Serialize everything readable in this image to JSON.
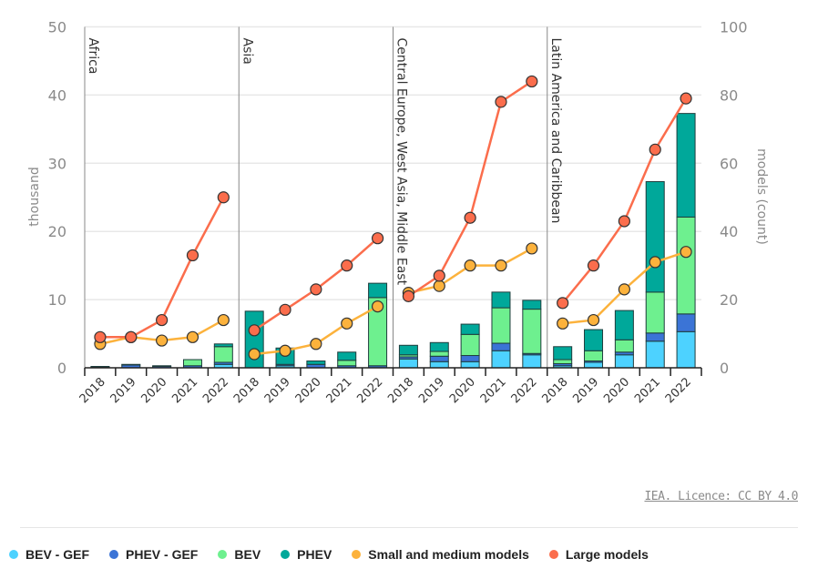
{
  "chart_data": {
    "type": "bar+line",
    "title": "",
    "ylabel_left": "thousand",
    "ylabel_right": "models (count)",
    "ylim_left": [
      0,
      50
    ],
    "ylim_right": [
      0,
      100
    ],
    "yticks_left": [
      "0",
      "10",
      "20",
      "30",
      "40",
      "50"
    ],
    "yticks_right": [
      "0",
      "20",
      "40",
      "60",
      "80",
      "100"
    ],
    "grid": true,
    "legend_position": "bottom",
    "categories": [
      "2018",
      "2019",
      "2020",
      "2021",
      "2022"
    ],
    "bar_series_names": [
      "BEV - GEF",
      "PHEV - GEF",
      "BEV",
      "PHEV"
    ],
    "line_series_names": [
      "Small and medium models",
      "Large models"
    ],
    "panels": [
      {
        "name": "Africa",
        "bars": {
          "BEV - GEF": [
            0,
            0,
            0,
            0,
            0.5
          ],
          "PHEV - GEF": [
            0.1,
            0.4,
            0.2,
            0.3,
            0.3
          ],
          "BEV": [
            0,
            0,
            0,
            0.9,
            2.3
          ],
          "PHEV": [
            0.1,
            0.1,
            0.1,
            0,
            0.4
          ]
        },
        "lines": {
          "Small and medium models": [
            7,
            9,
            8,
            9,
            14
          ],
          "Large models": [
            9,
            9,
            14,
            33,
            50
          ]
        }
      },
      {
        "name": "Asia",
        "bars": {
          "BEV - GEF": [
            0,
            0.3,
            0,
            0,
            0
          ],
          "PHEV - GEF": [
            0,
            0.2,
            0.5,
            0.3,
            0.3
          ],
          "BEV": [
            0,
            0,
            0,
            0.8,
            10
          ],
          "PHEV": [
            8.3,
            2.4,
            0.5,
            1.2,
            2.1
          ]
        },
        "lines": {
          "Small and medium models": [
            4,
            5,
            7,
            13,
            18
          ],
          "Large models": [
            11,
            17,
            23,
            30,
            38
          ]
        }
      },
      {
        "name": "Central Europe, West Asia, Middle East",
        "bars": {
          "BEV - GEF": [
            1.3,
            0.9,
            0.9,
            2.5,
            1.9
          ],
          "PHEV - GEF": [
            0.3,
            0.8,
            0.9,
            1.1,
            0.2
          ],
          "BEV": [
            0.3,
            0.7,
            3.1,
            5.2,
            6.5
          ],
          "PHEV": [
            1.4,
            1.3,
            1.5,
            2.3,
            1.3
          ]
        },
        "lines": {
          "Small and medium models": [
            22,
            24,
            30,
            30,
            35
          ],
          "Large models": [
            21,
            27,
            44,
            78,
            84
          ]
        }
      },
      {
        "name": "Latin America and Caribbean",
        "bars": {
          "BEV - GEF": [
            0.3,
            0.8,
            1.9,
            3.9,
            5.3
          ],
          "PHEV - GEF": [
            0.3,
            0.2,
            0.4,
            1.2,
            2.6
          ],
          "BEV": [
            0.6,
            1.5,
            1.8,
            6.0,
            14.2
          ],
          "PHEV": [
            1.9,
            3.1,
            4.3,
            16.2,
            15.2
          ]
        },
        "lines": {
          "Small and medium models": [
            13,
            14,
            23,
            31,
            34
          ],
          "Large models": [
            19,
            30,
            43,
            64,
            79
          ]
        }
      }
    ],
    "colors": {
      "BEV - GEF": "#4dd2ff",
      "PHEV - GEF": "#3b74d6",
      "BEV": "#6ef08f",
      "PHEV": "#00a89a",
      "Small and medium models": "#fcb23c",
      "Large models": "#fb6d4c"
    }
  },
  "credit": "IEA. Licence: CC BY 4.0",
  "legend": [
    {
      "label": "BEV - GEF",
      "color": "#4dd2ff"
    },
    {
      "label": "PHEV - GEF",
      "color": "#3b74d6"
    },
    {
      "label": "BEV",
      "color": "#6ef08f"
    },
    {
      "label": "PHEV",
      "color": "#00a89a"
    },
    {
      "label": "Small and medium models",
      "color": "#fcb23c"
    },
    {
      "label": "Large models",
      "color": "#fb6d4c"
    }
  ]
}
